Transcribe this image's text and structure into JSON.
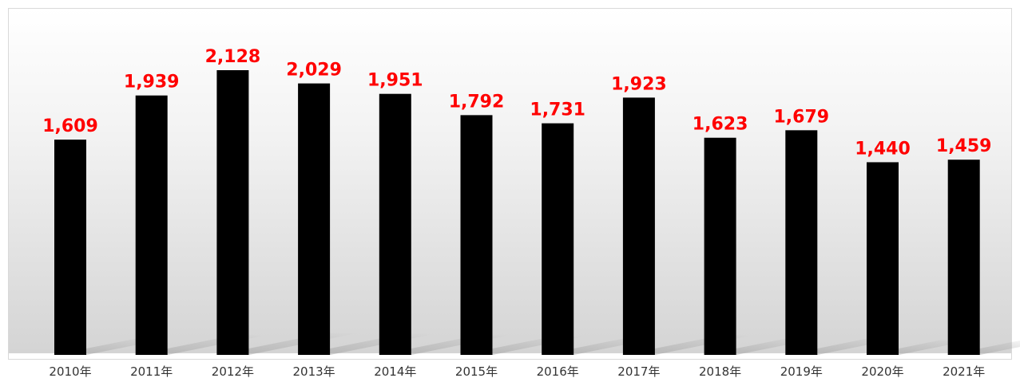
{
  "chart_data": {
    "type": "bar",
    "categories": [
      "2010年",
      "2011年",
      "2012年",
      "2013年",
      "2014年",
      "2015年",
      "2016年",
      "2017年",
      "2018年",
      "2019年",
      "2020年",
      "2021年"
    ],
    "values": [
      1609,
      1939,
      2128,
      2029,
      1951,
      1792,
      1731,
      1923,
      1623,
      1679,
      1440,
      1459
    ],
    "data_labels": [
      "1,609",
      "1,939",
      "2,128",
      "2,029",
      "1,951",
      "1,792",
      "1,731",
      "1,923",
      "1,623",
      "1,679",
      "1,440",
      "1,459"
    ],
    "title": "",
    "xlabel": "",
    "ylabel": "",
    "ylim": [
      0,
      2128
    ],
    "grid": false,
    "legend": "none",
    "colors": {
      "bar": "#000000",
      "data_label": "#ff0000",
      "tick_label": "#333333",
      "background_top": "#ffffff",
      "background_bottom": "#d9d9d9",
      "border": "#d9d9d9"
    }
  }
}
